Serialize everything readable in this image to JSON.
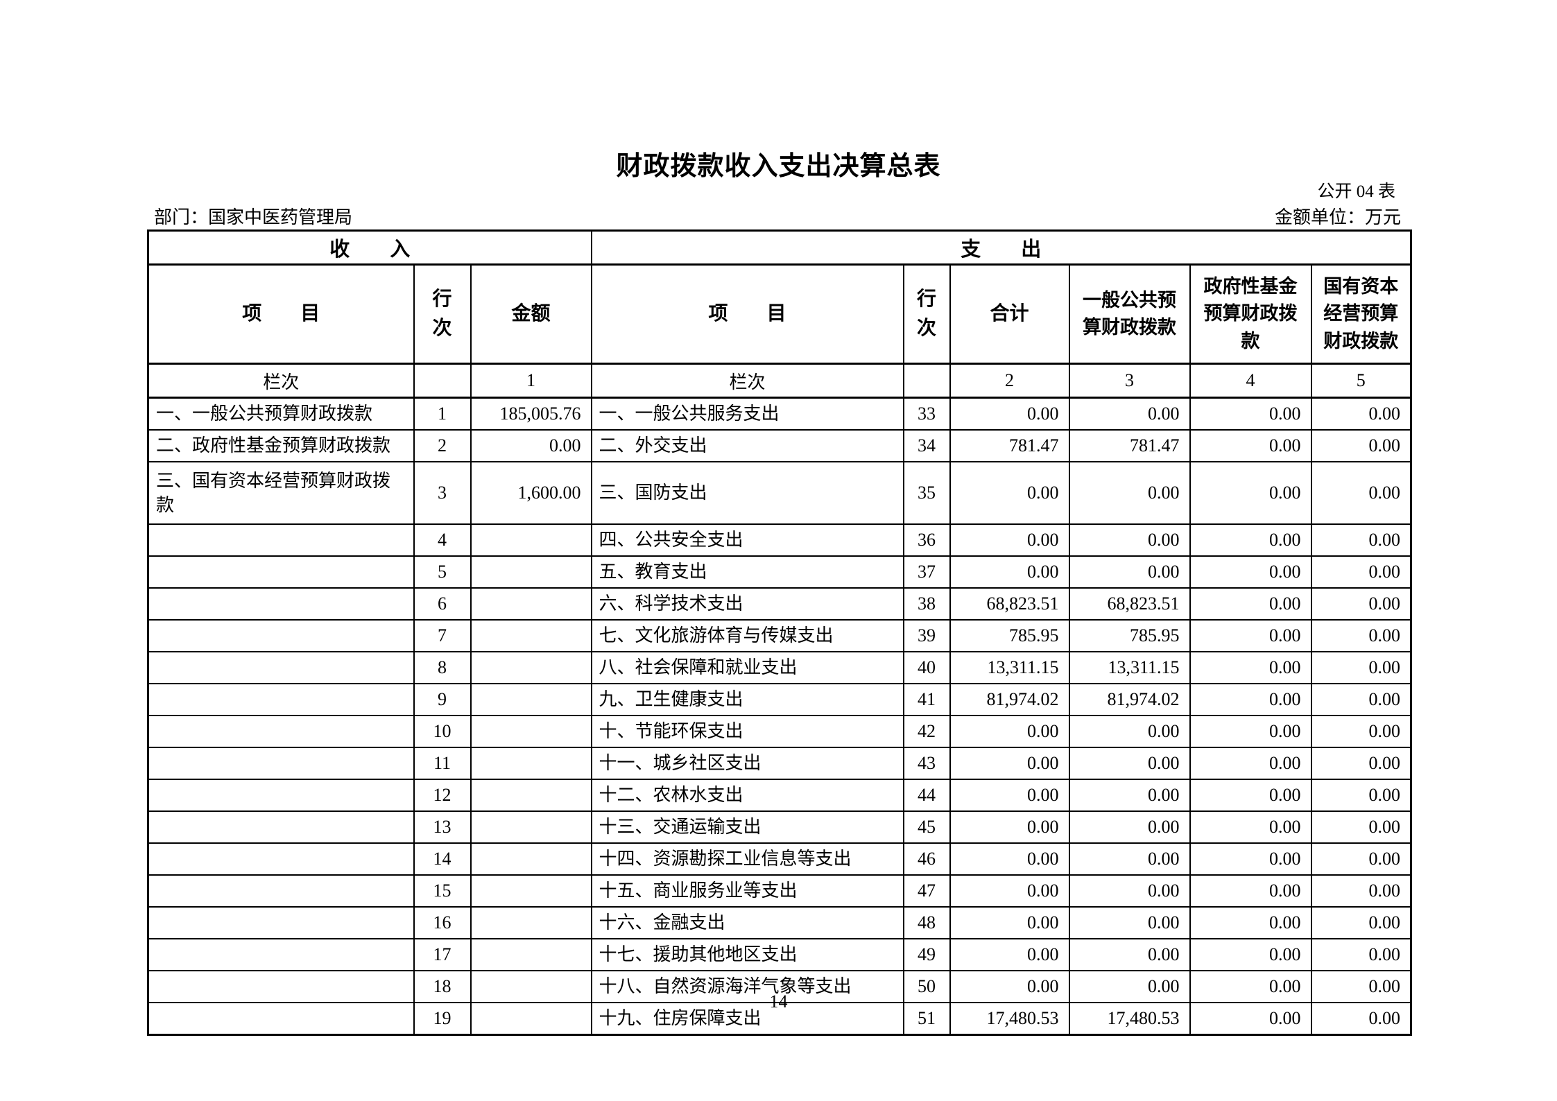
{
  "page": {
    "title": "财政拨款收入支出决算总表",
    "table_code": "公开 04 表",
    "department_label": "部门：国家中医药管理局",
    "unit_label": "金额单位：万元",
    "page_number": "14"
  },
  "table": {
    "section_headers": {
      "income": "收　　入",
      "expense": "支　　出"
    },
    "column_headers": {
      "income_item": "项　　目",
      "income_row_no": "行次",
      "income_amount": "金额",
      "expense_item": "项　　目",
      "expense_row_no": "行次",
      "total": "合计",
      "general_budget": "一般公共预算财政拨款",
      "gov_fund": "政府性基金预算财政拨款",
      "state_capital": "国有资本经营预算财政拨款"
    },
    "lane_row": {
      "income_label": "栏次",
      "income_amount_no": "1",
      "expense_label": "栏次",
      "total_no": "2",
      "general_no": "3",
      "gov_fund_no": "4",
      "state_capital_no": "5"
    },
    "rows": [
      {
        "income_item": "一、一般公共预算财政拨款",
        "income_row": "1",
        "income_amount": "185,005.76",
        "expense_item": "一、一般公共服务支出",
        "expense_row": "33",
        "total": "0.00",
        "general": "0.00",
        "gov_fund": "0.00",
        "state_capital": "0.00"
      },
      {
        "income_item": "二、政府性基金预算财政拨款",
        "income_row": "2",
        "income_amount": "0.00",
        "expense_item": "二、外交支出",
        "expense_row": "34",
        "total": "781.47",
        "general": "781.47",
        "gov_fund": "0.00",
        "state_capital": "0.00"
      },
      {
        "income_item": "三、国有资本经营预算财政拨款",
        "income_row": "3",
        "income_amount": "1,600.00",
        "expense_item": "三、国防支出",
        "expense_row": "35",
        "total": "0.00",
        "general": "0.00",
        "gov_fund": "0.00",
        "state_capital": "0.00"
      },
      {
        "income_item": "",
        "income_row": "4",
        "income_amount": "",
        "expense_item": "四、公共安全支出",
        "expense_row": "36",
        "total": "0.00",
        "general": "0.00",
        "gov_fund": "0.00",
        "state_capital": "0.00"
      },
      {
        "income_item": "",
        "income_row": "5",
        "income_amount": "",
        "expense_item": "五、教育支出",
        "expense_row": "37",
        "total": "0.00",
        "general": "0.00",
        "gov_fund": "0.00",
        "state_capital": "0.00"
      },
      {
        "income_item": "",
        "income_row": "6",
        "income_amount": "",
        "expense_item": "六、科学技术支出",
        "expense_row": "38",
        "total": "68,823.51",
        "general": "68,823.51",
        "gov_fund": "0.00",
        "state_capital": "0.00"
      },
      {
        "income_item": "",
        "income_row": "7",
        "income_amount": "",
        "expense_item": "七、文化旅游体育与传媒支出",
        "expense_row": "39",
        "total": "785.95",
        "general": "785.95",
        "gov_fund": "0.00",
        "state_capital": "0.00"
      },
      {
        "income_item": "",
        "income_row": "8",
        "income_amount": "",
        "expense_item": "八、社会保障和就业支出",
        "expense_row": "40",
        "total": "13,311.15",
        "general": "13,311.15",
        "gov_fund": "0.00",
        "state_capital": "0.00"
      },
      {
        "income_item": "",
        "income_row": "9",
        "income_amount": "",
        "expense_item": "九、卫生健康支出",
        "expense_row": "41",
        "total": "81,974.02",
        "general": "81,974.02",
        "gov_fund": "0.00",
        "state_capital": "0.00"
      },
      {
        "income_item": "",
        "income_row": "10",
        "income_amount": "",
        "expense_item": "十、节能环保支出",
        "expense_row": "42",
        "total": "0.00",
        "general": "0.00",
        "gov_fund": "0.00",
        "state_capital": "0.00"
      },
      {
        "income_item": "",
        "income_row": "11",
        "income_amount": "",
        "expense_item": "十一、城乡社区支出",
        "expense_row": "43",
        "total": "0.00",
        "general": "0.00",
        "gov_fund": "0.00",
        "state_capital": "0.00"
      },
      {
        "income_item": "",
        "income_row": "12",
        "income_amount": "",
        "expense_item": "十二、农林水支出",
        "expense_row": "44",
        "total": "0.00",
        "general": "0.00",
        "gov_fund": "0.00",
        "state_capital": "0.00"
      },
      {
        "income_item": "",
        "income_row": "13",
        "income_amount": "",
        "expense_item": "十三、交通运输支出",
        "expense_row": "45",
        "total": "0.00",
        "general": "0.00",
        "gov_fund": "0.00",
        "state_capital": "0.00"
      },
      {
        "income_item": "",
        "income_row": "14",
        "income_amount": "",
        "expense_item": "十四、资源勘探工业信息等支出",
        "expense_row": "46",
        "total": "0.00",
        "general": "0.00",
        "gov_fund": "0.00",
        "state_capital": "0.00"
      },
      {
        "income_item": "",
        "income_row": "15",
        "income_amount": "",
        "expense_item": "十五、商业服务业等支出",
        "expense_row": "47",
        "total": "0.00",
        "general": "0.00",
        "gov_fund": "0.00",
        "state_capital": "0.00"
      },
      {
        "income_item": "",
        "income_row": "16",
        "income_amount": "",
        "expense_item": "十六、金融支出",
        "expense_row": "48",
        "total": "0.00",
        "general": "0.00",
        "gov_fund": "0.00",
        "state_capital": "0.00"
      },
      {
        "income_item": "",
        "income_row": "17",
        "income_amount": "",
        "expense_item": "十七、援助其他地区支出",
        "expense_row": "49",
        "total": "0.00",
        "general": "0.00",
        "gov_fund": "0.00",
        "state_capital": "0.00"
      },
      {
        "income_item": "",
        "income_row": "18",
        "income_amount": "",
        "expense_item": "十八、自然资源海洋气象等支出",
        "expense_row": "50",
        "total": "0.00",
        "general": "0.00",
        "gov_fund": "0.00",
        "state_capital": "0.00"
      },
      {
        "income_item": "",
        "income_row": "19",
        "income_amount": "",
        "expense_item": "十九、住房保障支出",
        "expense_row": "51",
        "total": "17,480.53",
        "general": "17,480.53",
        "gov_fund": "0.00",
        "state_capital": "0.00"
      }
    ]
  }
}
